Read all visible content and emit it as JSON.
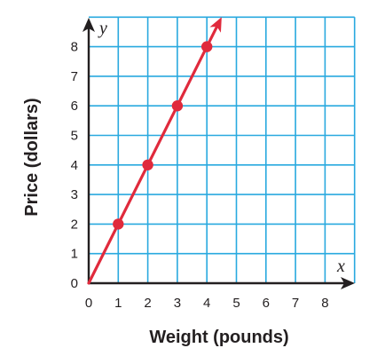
{
  "chart_data": {
    "type": "line",
    "title": "",
    "xlabel": "Weight (pounds)",
    "ylabel": "Price (dollars)",
    "x_axis_letter": "x",
    "y_axis_letter": "y",
    "xlim": [
      0,
      9
    ],
    "ylim": [
      0,
      9
    ],
    "x_ticks": [
      0,
      1,
      2,
      3,
      4,
      5,
      6,
      7,
      8
    ],
    "y_ticks": [
      0,
      1,
      2,
      3,
      4,
      5,
      6,
      7,
      8
    ],
    "grid": true,
    "series": [
      {
        "points": [
          {
            "x": 1,
            "y": 2
          },
          {
            "x": 2,
            "y": 4
          },
          {
            "x": 3,
            "y": 6
          },
          {
            "x": 4,
            "y": 8
          }
        ],
        "line_from": {
          "x": 0,
          "y": 0
        },
        "line_arrow_end": true
      }
    ],
    "colors": {
      "grid": "#29a9df",
      "line": "#e02a3c",
      "axis": "#231f20",
      "text": "#231f20"
    }
  }
}
